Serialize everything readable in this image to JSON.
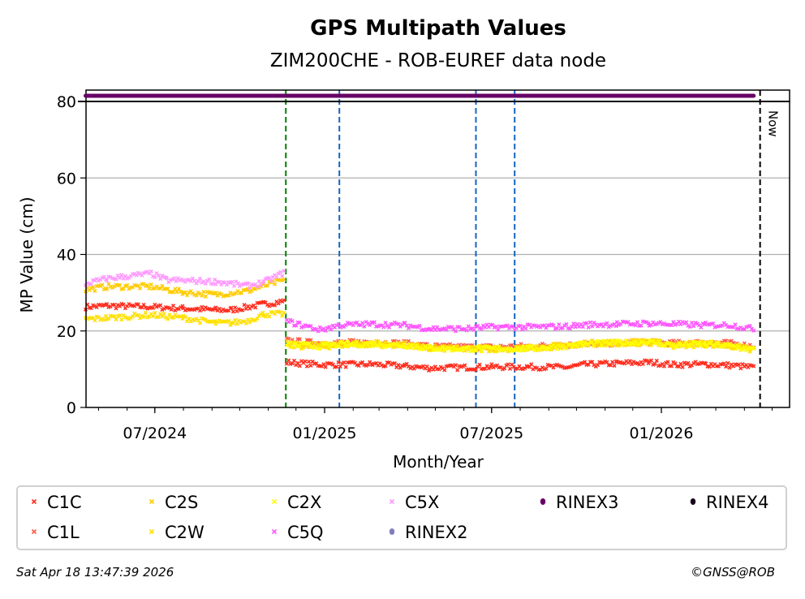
{
  "chart_data": {
    "type": "scatter",
    "title": "GPS Multipath Values",
    "subtitle": "ZIM200CHE - ROB-EUREF data node",
    "xlabel": "Month/Year",
    "ylabel": "MP Value (cm)",
    "xlim": [
      "2024-04-17",
      "2026-05-19"
    ],
    "ylim": [
      0,
      80
    ],
    "yticks": [
      0,
      20,
      40,
      60,
      80
    ],
    "ygrid": [
      20,
      40,
      60
    ],
    "xticks": [
      {
        "date": "2024-07-01",
        "label": "07/2024"
      },
      {
        "date": "2025-01-01",
        "label": "01/2025"
      },
      {
        "date": "2025-07-01",
        "label": "07/2025"
      },
      {
        "date": "2026-01-01",
        "label": "01/2026"
      }
    ],
    "now": {
      "date": "2026-04-18",
      "label": "Now"
    },
    "event_lines": [
      {
        "date": "2024-11-20",
        "color": "#008000"
      },
      {
        "date": "2025-01-17",
        "color": "#1565c0"
      },
      {
        "date": "2025-06-14",
        "color": "#1565c0"
      },
      {
        "date": "2025-07-26",
        "color": "#1565c0"
      }
    ],
    "series": [
      {
        "name": "C1C",
        "color": "#ff2d1e",
        "marker": "x",
        "segments": [
          [
            [
              "2024-04-17",
              26.3
            ],
            [
              "2024-05-10",
              26.6
            ],
            [
              "2024-06-27",
              26.3
            ],
            [
              "2024-08-01",
              25.9
            ],
            [
              "2024-09-05",
              25.5
            ],
            [
              "2024-09-22",
              25.5
            ],
            [
              "2024-10-27",
              27.0
            ],
            [
              "2024-11-19",
              27.8
            ]
          ],
          [
            [
              "2024-11-21",
              11.8
            ],
            [
              "2024-12-27",
              11.2
            ],
            [
              "2025-01-18",
              11.2
            ],
            [
              "2025-02-22",
              11.3
            ],
            [
              "2025-03-29",
              10.8
            ],
            [
              "2025-04-25",
              10.3
            ],
            [
              "2025-06-08",
              10.5
            ],
            [
              "2025-07-01",
              10.6
            ],
            [
              "2025-08-09",
              10.6
            ],
            [
              "2025-09-22",
              10.5
            ],
            [
              "2025-10-10",
              11.2
            ],
            [
              "2025-11-14",
              11.5
            ],
            [
              "2025-12-19",
              11.8
            ],
            [
              "2026-01-14",
              11.2
            ],
            [
              "2026-02-18",
              11.3
            ],
            [
              "2026-03-16",
              11.0
            ],
            [
              "2026-04-11",
              10.5
            ]
          ]
        ]
      },
      {
        "name": "C1L",
        "color": "#ff5a4a",
        "marker": "x",
        "segments": [
          [
            [
              "2024-11-21",
              17.5
            ],
            [
              "2024-12-27",
              16.8
            ],
            [
              "2025-01-18",
              17.0
            ],
            [
              "2025-02-22",
              17.0
            ],
            [
              "2025-03-29",
              16.8
            ],
            [
              "2025-04-25",
              16.0
            ],
            [
              "2025-06-08",
              15.8
            ],
            [
              "2025-07-01",
              15.8
            ],
            [
              "2025-08-09",
              16.0
            ],
            [
              "2025-09-22",
              16.3
            ],
            [
              "2025-10-10",
              16.5
            ],
            [
              "2025-11-14",
              16.8
            ],
            [
              "2025-12-19",
              17.0
            ],
            [
              "2026-01-14",
              16.8
            ],
            [
              "2026-02-18",
              17.0
            ],
            [
              "2026-03-16",
              16.8
            ],
            [
              "2026-04-11",
              16.0
            ]
          ]
        ]
      },
      {
        "name": "C2S",
        "color": "#ffcc00",
        "marker": "x",
        "segments": [
          [
            [
              "2024-04-17",
              30.8
            ],
            [
              "2024-05-10",
              31.6
            ],
            [
              "2024-06-27",
              31.6
            ],
            [
              "2024-08-01",
              30.1
            ],
            [
              "2024-09-05",
              29.5
            ],
            [
              "2024-10-10",
              30.5
            ],
            [
              "2024-10-27",
              31.8
            ],
            [
              "2024-11-19",
              33.3
            ]
          ],
          [
            [
              "2024-11-21",
              16.8
            ],
            [
              "2024-12-27",
              16.2
            ],
            [
              "2025-01-18",
              16.6
            ],
            [
              "2025-02-22",
              16.8
            ],
            [
              "2025-03-29",
              16.5
            ],
            [
              "2025-04-25",
              15.6
            ],
            [
              "2025-06-08",
              15.4
            ],
            [
              "2025-07-01",
              15.5
            ],
            [
              "2025-08-09",
              15.5
            ],
            [
              "2025-09-22",
              16.3
            ],
            [
              "2025-10-10",
              16.8
            ],
            [
              "2025-11-14",
              17.0
            ],
            [
              "2025-12-19",
              17.2
            ],
            [
              "2026-01-14",
              16.5
            ],
            [
              "2026-02-18",
              16.8
            ],
            [
              "2026-03-16",
              16.2
            ],
            [
              "2026-04-11",
              15.2
            ]
          ]
        ]
      },
      {
        "name": "C2W",
        "color": "#ffe000",
        "marker": "x",
        "segments": [
          [
            [
              "2024-04-17",
              23.1
            ],
            [
              "2024-05-10",
              23.4
            ],
            [
              "2024-06-27",
              24.2
            ],
            [
              "2024-08-01",
              23.4
            ],
            [
              "2024-09-05",
              22.1
            ],
            [
              "2024-09-22",
              22.1
            ],
            [
              "2024-10-10",
              22.7
            ],
            [
              "2024-10-27",
              24.4
            ],
            [
              "2024-11-19",
              24.4
            ]
          ],
          [
            [
              "2024-11-21",
              16.2
            ],
            [
              "2024-12-27",
              15.8
            ],
            [
              "2025-01-18",
              16.3
            ],
            [
              "2025-02-22",
              16.5
            ],
            [
              "2025-03-29",
              16.2
            ],
            [
              "2025-04-25",
              15.4
            ],
            [
              "2025-06-08",
              15.2
            ],
            [
              "2025-07-01",
              15.3
            ],
            [
              "2025-08-09",
              15.3
            ],
            [
              "2025-09-22",
              16.0
            ],
            [
              "2025-10-10",
              16.5
            ],
            [
              "2025-11-14",
              16.8
            ],
            [
              "2025-12-19",
              17.0
            ],
            [
              "2026-01-14",
              16.2
            ],
            [
              "2026-02-18",
              16.5
            ],
            [
              "2026-03-16",
              16.0
            ],
            [
              "2026-04-11",
              15.0
            ]
          ]
        ]
      },
      {
        "name": "C2X",
        "color": "#ffff00",
        "marker": "x",
        "segments": [
          [
            [
              "2024-11-21",
              16.5
            ],
            [
              "2024-12-27",
              16.0
            ],
            [
              "2025-01-18",
              16.5
            ],
            [
              "2025-02-22",
              16.6
            ],
            [
              "2025-03-29",
              16.3
            ],
            [
              "2025-04-25",
              15.5
            ],
            [
              "2025-06-08",
              15.3
            ],
            [
              "2025-07-01",
              15.4
            ],
            [
              "2025-08-09",
              15.4
            ],
            [
              "2025-09-22",
              16.1
            ],
            [
              "2025-10-10",
              16.6
            ],
            [
              "2025-11-14",
              16.9
            ],
            [
              "2025-12-19",
              17.1
            ],
            [
              "2026-01-14",
              16.3
            ],
            [
              "2026-02-18",
              16.6
            ],
            [
              "2026-03-16",
              16.1
            ],
            [
              "2026-04-11",
              15.1
            ]
          ]
        ]
      },
      {
        "name": "C5X",
        "color": "#ff99ff",
        "marker": "x",
        "segments": [
          [
            [
              "2024-04-17",
              32.3
            ],
            [
              "2024-05-10",
              33.7
            ],
            [
              "2024-06-27",
              35.0
            ],
            [
              "2024-07-14",
              33.3
            ],
            [
              "2024-09-05",
              32.9
            ],
            [
              "2024-10-10",
              31.8
            ],
            [
              "2024-10-27",
              32.7
            ],
            [
              "2024-11-19",
              35.4
            ]
          ]
        ]
      },
      {
        "name": "C5Q",
        "color": "#ff55ff",
        "marker": "x",
        "segments": [
          [
            [
              "2024-11-21",
              22.5
            ],
            [
              "2024-12-27",
              20.3
            ],
            [
              "2025-01-18",
              21.5
            ],
            [
              "2025-02-22",
              21.8
            ],
            [
              "2025-03-29",
              21.5
            ],
            [
              "2025-04-25",
              20.6
            ],
            [
              "2025-06-08",
              20.6
            ],
            [
              "2025-06-26",
              21.0
            ],
            [
              "2025-08-09",
              21.0
            ],
            [
              "2025-09-22",
              21.2
            ],
            [
              "2025-10-10",
              21.6
            ],
            [
              "2025-11-14",
              21.8
            ],
            [
              "2025-12-19",
              22.0
            ],
            [
              "2026-01-14",
              21.8
            ],
            [
              "2026-02-18",
              21.5
            ],
            [
              "2026-03-16",
              21.6
            ],
            [
              "2026-04-11",
              20.5
            ]
          ]
        ]
      },
      {
        "name": "RINEX2",
        "color": "#7f7fbf",
        "marker": "o",
        "segments": []
      },
      {
        "name": "RINEX3",
        "color": "#660066",
        "marker": "o",
        "band": [
          "2024-04-17",
          "2026-04-11"
        ],
        "segments": []
      },
      {
        "name": "RINEX4",
        "color": "#1a0019",
        "marker": "o",
        "segments": []
      }
    ],
    "legend": {
      "placement": "bottom",
      "order": [
        "C1C",
        "C2S",
        "C2X",
        "C5X",
        "RINEX3",
        "RINEX4",
        "C1L",
        "C2W",
        "C5Q",
        "RINEX2"
      ]
    }
  },
  "footer": {
    "timestamp": "Sat Apr 18 13:47:39 2026",
    "copyright": "©GNSS@ROB"
  }
}
